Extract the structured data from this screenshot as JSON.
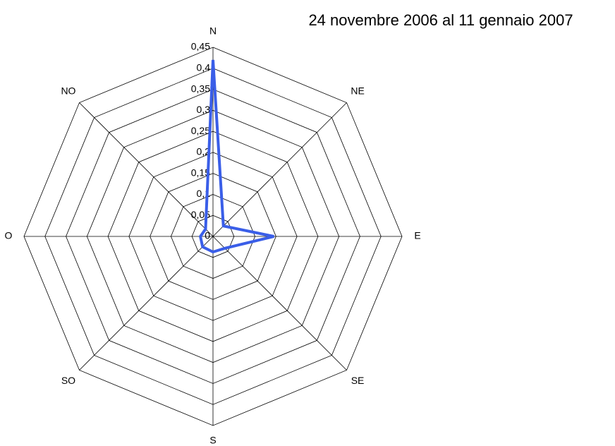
{
  "chart_data": {
    "type": "radar",
    "title": "24 novembre 2006 al 11 gennaio 2007",
    "categories": [
      "N",
      "NE",
      "E",
      "SE",
      "S",
      "SO",
      "O",
      "NO"
    ],
    "series": [
      {
        "color": "#3a5ee8",
        "values": [
          0.42,
          0.035,
          0.145,
          0.04,
          0.037,
          0.035,
          0.03,
          0.025
        ]
      }
    ],
    "ylim": [
      0,
      0.45
    ],
    "yticks": [
      {
        "value": 0,
        "label": "0"
      },
      {
        "value": 0.05,
        "label": "0,05"
      },
      {
        "value": 0.1,
        "label": "0,1"
      },
      {
        "value": 0.15,
        "label": "0,15"
      },
      {
        "value": 0.2,
        "label": "0,2"
      },
      {
        "value": 0.25,
        "label": "0,25"
      },
      {
        "value": 0.3,
        "label": "0,3"
      },
      {
        "value": 0.35,
        "label": "0,35"
      },
      {
        "value": 0.4,
        "label": "0,4"
      },
      {
        "value": 0.45,
        "label": "0,45"
      }
    ],
    "grid": true
  }
}
